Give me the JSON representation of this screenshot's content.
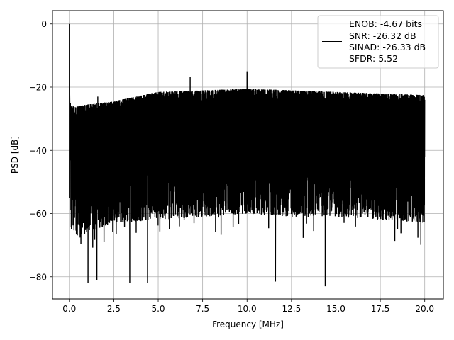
{
  "chart_data": {
    "type": "line",
    "title": "",
    "xlabel": "Frequency [MHz]",
    "ylabel": "PSD [dB]",
    "xlim": [
      -0.95,
      21.05
    ],
    "ylim": [
      -87.0,
      4.2
    ],
    "xticks": [
      0.0,
      2.5,
      5.0,
      7.5,
      10.0,
      12.5,
      15.0,
      17.5,
      20.0
    ],
    "xtick_labels": [
      "0.0",
      "2.5",
      "5.0",
      "7.5",
      "10.0",
      "12.5",
      "15.0",
      "17.5",
      "20.0"
    ],
    "yticks": [
      0,
      -20,
      -40,
      -60,
      -80
    ],
    "ytick_labels": [
      "0",
      "−20",
      "−40",
      "−60",
      "−80"
    ],
    "grid": true,
    "legend_placement": "top-right",
    "series": [
      {
        "color": "#000000",
        "description": "dense noise-floor PSD trace; upper envelope rises from about -26 dB near 0 MHz to about -21 dB from 5 MHz onward, lower envelope mostly between -57 and -72 dB",
        "envelope_x": [
          0.0,
          0.5,
          1.0,
          2.5,
          5.0,
          7.5,
          10.0,
          12.5,
          15.0,
          17.5,
          20.0
        ],
        "envelope_upper": [
          -26,
          -26,
          -25.5,
          -24.5,
          -21.5,
          -21,
          -20.5,
          -21,
          -21.5,
          -22,
          -22.5
        ],
        "envelope_lower": [
          -64,
          -68,
          -66,
          -63,
          -62,
          -61,
          -60,
          -61,
          -61,
          -62,
          -63
        ],
        "peaks": [
          {
            "x": 0.0,
            "y": 0.0
          },
          {
            "x": 1.6,
            "y": -23.0
          },
          {
            "x": 6.8,
            "y": -16.8
          },
          {
            "x": 10.0,
            "y": -15.0
          }
        ],
        "deep_dips": [
          {
            "x": 1.05,
            "y": -82.0
          },
          {
            "x": 1.55,
            "y": -81.0
          },
          {
            "x": 3.4,
            "y": -82.0
          },
          {
            "x": 4.4,
            "y": -82.0
          },
          {
            "x": 11.6,
            "y": -81.5
          },
          {
            "x": 14.4,
            "y": -83.0
          }
        ]
      }
    ],
    "legend": {
      "lines": [
        "ENOB: -4.67 bits",
        "SNR: -26.32 dB",
        "SINAD: -26.33 dB",
        "SFDR: 5.52"
      ]
    }
  }
}
